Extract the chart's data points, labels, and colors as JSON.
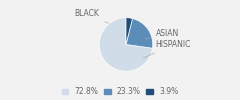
{
  "labels": [
    "BLACK",
    "HISPANIC",
    "ASIAN"
  ],
  "values": [
    72.8,
    23.3,
    3.9
  ],
  "colors": [
    "#d0dde8",
    "#5b8db8",
    "#1f4e79"
  ],
  "legend_labels": [
    "72.8%",
    "23.3%",
    "3.9%"
  ],
  "startangle": 90,
  "font_size": 5.5,
  "legend_font_size": 5.5,
  "text_color": "#666666",
  "bg_color": "#f2f2f2"
}
